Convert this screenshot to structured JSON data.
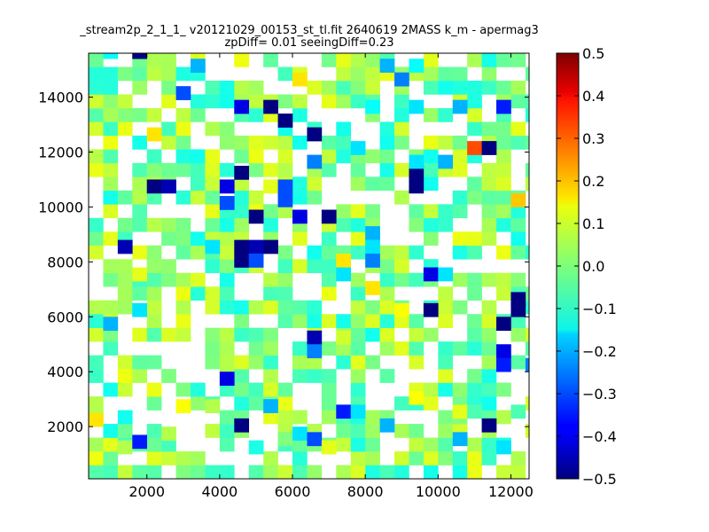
{
  "chart_data": {
    "type": "heatmap",
    "title_line1": "_stream2p_2_1_1_ v20121029_00153_st_tl.fit 2640619 2MASS k_m - apermag3",
    "title_line2": "zpDiff= 0.01 seeingDiff=0.23",
    "xlabel": "",
    "ylabel": "",
    "xlim": [
      400,
      12500
    ],
    "ylim": [
      100,
      15600
    ],
    "x_ticks": [
      2000,
      4000,
      6000,
      8000,
      10000,
      12000
    ],
    "y_ticks": [
      2000,
      4000,
      6000,
      8000,
      10000,
      12000,
      14000
    ],
    "x_tick_labels": [
      "2000",
      "4000",
      "6000",
      "8000",
      "10000",
      "12000"
    ],
    "y_tick_labels": [
      "2000",
      "4000",
      "6000",
      "8000",
      "10000",
      "12000",
      "14000"
    ],
    "colorbar": {
      "colormap": "jet",
      "vmin": -0.5,
      "vmax": 0.5,
      "ticks": [
        0.5,
        0.4,
        0.3,
        0.2,
        0.1,
        0.0,
        -0.1,
        -0.2,
        -0.3,
        -0.4,
        -0.5
      ],
      "tick_labels": [
        "0.5",
        "0.4",
        "0.3",
        "0.2",
        "0.1",
        "0.0",
        "−0.1",
        "−0.2",
        "−0.3",
        "−0.4",
        "−0.5"
      ]
    },
    "grid": false,
    "cell_width": 400,
    "cell_height": 500,
    "note_values": "approximate magnitude differences estimated from cell colours; null = empty cell",
    "cells": [
      {
        "x": 400,
        "y": 2000,
        "v": 0.15
      },
      {
        "x": 1200,
        "y": 1000,
        "v": 0.05
      },
      {
        "x": 1600,
        "y": 1200,
        "v": -0.35
      },
      {
        "x": 2400,
        "y": 1500,
        "v": 0.05
      },
      {
        "x": 2800,
        "y": 2500,
        "v": 0.12
      },
      {
        "x": 3600,
        "y": 2500,
        "v": 0.05
      },
      {
        "x": 4000,
        "y": 3500,
        "v": -0.4
      },
      {
        "x": 4400,
        "y": 1800,
        "v": -0.5
      },
      {
        "x": 4800,
        "y": 1000,
        "v": -0.1
      },
      {
        "x": 5200,
        "y": 2500,
        "v": -0.2
      },
      {
        "x": 5600,
        "y": 1300,
        "v": 0.0
      },
      {
        "x": 6000,
        "y": 1500,
        "v": -0.15
      },
      {
        "x": 6400,
        "y": 1300,
        "v": -0.3
      },
      {
        "x": 6800,
        "y": 1000,
        "v": 0.1
      },
      {
        "x": 7200,
        "y": 2300,
        "v": -0.35
      },
      {
        "x": 7600,
        "y": 2300,
        "v": -0.15
      },
      {
        "x": 8400,
        "y": 1800,
        "v": -0.2
      },
      {
        "x": 9200,
        "y": 2800,
        "v": 0.12
      },
      {
        "x": 10400,
        "y": 2300,
        "v": 0.1
      },
      {
        "x": 10400,
        "y": 1300,
        "v": -0.2
      },
      {
        "x": 10800,
        "y": 2300,
        "v": -0.05
      },
      {
        "x": 11200,
        "y": 1800,
        "v": -0.5
      },
      {
        "x": 11600,
        "y": 1000,
        "v": -0.15
      },
      {
        "x": 12000,
        "y": 2300,
        "v": -0.05
      },
      {
        "x": 1200,
        "y": 8300,
        "v": -0.45
      },
      {
        "x": 1600,
        "y": 7300,
        "v": 0.1
      },
      {
        "x": 1600,
        "y": 6000,
        "v": -0.15
      },
      {
        "x": 2000,
        "y": 12400,
        "v": 0.15
      },
      {
        "x": 2000,
        "y": 10500,
        "v": -0.5
      },
      {
        "x": 2400,
        "y": 10500,
        "v": -0.45
      },
      {
        "x": 2800,
        "y": 13900,
        "v": -0.3
      },
      {
        "x": 3600,
        "y": 8300,
        "v": -0.15
      },
      {
        "x": 4000,
        "y": 10500,
        "v": -0.4
      },
      {
        "x": 4000,
        "y": 9900,
        "v": -0.3
      },
      {
        "x": 4400,
        "y": 13400,
        "v": -0.4
      },
      {
        "x": 4400,
        "y": 8300,
        "v": -0.5
      },
      {
        "x": 4400,
        "y": 7800,
        "v": -0.5
      },
      {
        "x": 4400,
        "y": 11000,
        "v": -0.5
      },
      {
        "x": 4800,
        "y": 9400,
        "v": -0.5
      },
      {
        "x": 4800,
        "y": 8300,
        "v": -0.45
      },
      {
        "x": 4800,
        "y": 7800,
        "v": -0.3
      },
      {
        "x": 5200,
        "y": 8300,
        "v": -0.5
      },
      {
        "x": 5200,
        "y": 10500,
        "v": 0.1
      },
      {
        "x": 5200,
        "y": 13400,
        "v": -0.5
      },
      {
        "x": 5600,
        "y": 12900,
        "v": -0.5
      },
      {
        "x": 5600,
        "y": 10500,
        "v": -0.3
      },
      {
        "x": 5600,
        "y": 10000,
        "v": -0.3
      },
      {
        "x": 6000,
        "y": 14400,
        "v": 0.15
      },
      {
        "x": 6000,
        "y": 9400,
        "v": -0.4
      },
      {
        "x": 6400,
        "y": 12400,
        "v": -0.5
      },
      {
        "x": 6400,
        "y": 11400,
        "v": -0.25
      },
      {
        "x": 6400,
        "y": 5000,
        "v": -0.45
      },
      {
        "x": 6400,
        "y": 4500,
        "v": -0.25
      },
      {
        "x": 6800,
        "y": 9400,
        "v": -0.5
      },
      {
        "x": 7200,
        "y": 7800,
        "v": 0.15
      },
      {
        "x": 7200,
        "y": 7300,
        "v": -0.15
      },
      {
        "x": 7200,
        "y": 5000,
        "v": 0.08
      },
      {
        "x": 7600,
        "y": 11900,
        "v": -0.15
      },
      {
        "x": 8000,
        "y": 8800,
        "v": -0.2
      },
      {
        "x": 8000,
        "y": 8300,
        "v": -0.15
      },
      {
        "x": 8000,
        "y": 7800,
        "v": -0.25
      },
      {
        "x": 8000,
        "y": 13400,
        "v": -0.12
      },
      {
        "x": 8000,
        "y": 6800,
        "v": 0.15
      },
      {
        "x": 8800,
        "y": 14400,
        "v": -0.25
      },
      {
        "x": 8800,
        "y": 6000,
        "v": 0.12
      },
      {
        "x": 9200,
        "y": 10500,
        "v": -0.5
      },
      {
        "x": 9200,
        "y": 11000,
        "v": -0.5
      },
      {
        "x": 9200,
        "y": 13400,
        "v": -0.15
      },
      {
        "x": 9200,
        "y": 11400,
        "v": -0.15
      },
      {
        "x": 9600,
        "y": 7300,
        "v": -0.4
      },
      {
        "x": 9600,
        "y": 6000,
        "v": -0.5
      },
      {
        "x": 10000,
        "y": 11400,
        "v": -0.2
      },
      {
        "x": 10000,
        "y": 7300,
        "v": -0.15
      },
      {
        "x": 10400,
        "y": 13400,
        "v": -0.2
      },
      {
        "x": 10800,
        "y": 11900,
        "v": 0.3
      },
      {
        "x": 11200,
        "y": 11900,
        "v": -0.5
      },
      {
        "x": 11600,
        "y": 13400,
        "v": -0.35
      },
      {
        "x": 11600,
        "y": 5500,
        "v": -0.5
      },
      {
        "x": 11600,
        "y": 4500,
        "v": -0.4
      },
      {
        "x": 11600,
        "y": 4000,
        "v": -0.35
      },
      {
        "x": 12000,
        "y": 10000,
        "v": 0.18
      },
      {
        "x": 12000,
        "y": 6400,
        "v": -0.5
      },
      {
        "x": 12000,
        "y": 6000,
        "v": -0.5
      },
      {
        "x": 12400,
        "y": 4000,
        "v": -0.25
      },
      {
        "x": 800,
        "y": 5500,
        "v": -0.2
      },
      {
        "x": 800,
        "y": 15400,
        "v": -0.12
      },
      {
        "x": 1600,
        "y": 15400,
        "v": -0.5
      },
      {
        "x": 3200,
        "y": 14900,
        "v": -0.2
      },
      {
        "x": 8400,
        "y": 14900,
        "v": -0.2
      },
      {
        "x": 9200,
        "y": 14900,
        "v": -0.12
      }
    ]
  }
}
